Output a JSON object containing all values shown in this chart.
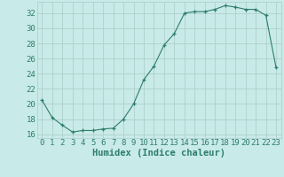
{
  "x": [
    0,
    1,
    2,
    3,
    4,
    5,
    6,
    7,
    8,
    9,
    10,
    11,
    12,
    13,
    14,
    15,
    16,
    17,
    18,
    19,
    20,
    21,
    22,
    23
  ],
  "y": [
    20.5,
    18.2,
    17.2,
    16.3,
    16.5,
    16.5,
    16.7,
    16.8,
    18.0,
    20.0,
    23.2,
    25.0,
    27.8,
    29.3,
    32.0,
    32.2,
    32.2,
    32.5,
    33.0,
    32.8,
    32.5,
    32.5,
    31.7,
    24.8
  ],
  "xlabel": "Humidex (Indice chaleur)",
  "xlim": [
    -0.5,
    23.5
  ],
  "ylim": [
    15.5,
    33.5
  ],
  "yticks": [
    16,
    18,
    20,
    22,
    24,
    26,
    28,
    30,
    32
  ],
  "xticks": [
    0,
    1,
    2,
    3,
    4,
    5,
    6,
    7,
    8,
    9,
    10,
    11,
    12,
    13,
    14,
    15,
    16,
    17,
    18,
    19,
    20,
    21,
    22,
    23
  ],
  "line_color": "#2e7d6e",
  "bg_color": "#c8eae8",
  "grid_color": "#b0d0cc",
  "text_color": "#2e7d6e",
  "tick_label_size": 6.5,
  "xlabel_size": 7.5
}
